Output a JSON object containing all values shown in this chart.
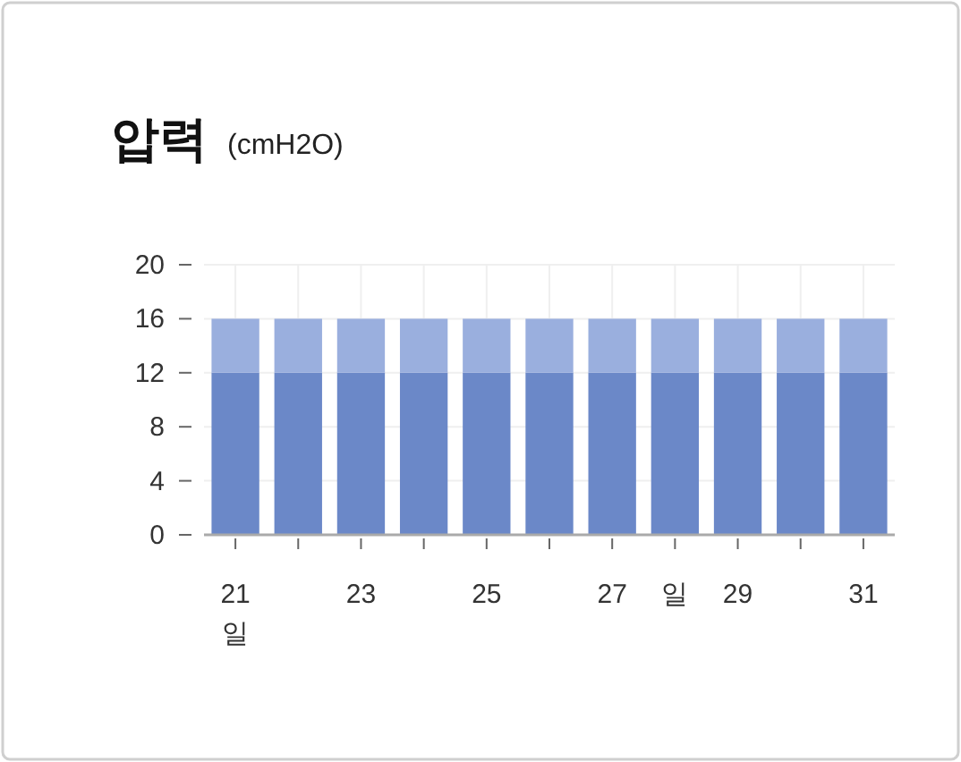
{
  "chart_data": {
    "type": "bar",
    "title": "압력",
    "subtitle": "(cmH2O)",
    "categories": [
      "21\n일",
      null,
      "23",
      null,
      "25",
      null,
      "27",
      "일",
      "29",
      null,
      "31"
    ],
    "series": [
      {
        "color": "#6b88c8",
        "values": [
          12,
          12,
          12,
          12,
          12,
          12,
          12,
          12,
          12,
          12,
          12
        ]
      },
      {
        "color": "#9aafde",
        "values": [
          4,
          4,
          4,
          4,
          4,
          4,
          4,
          4,
          4,
          4,
          4
        ]
      }
    ],
    "stacked": true,
    "ylim": [
      0,
      20
    ],
    "yticks": [
      0,
      4,
      8,
      12,
      16,
      20
    ],
    "grid": true
  }
}
